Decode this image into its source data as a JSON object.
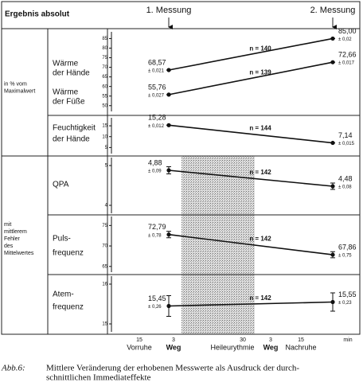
{
  "header": {
    "title": "Ergebnis absolut",
    "measurements": [
      "1. Messung",
      "2. Messung"
    ]
  },
  "groups": [
    {
      "label": [
        "in % vom",
        "Maximalwert"
      ]
    },
    {
      "label": [
        "mit",
        "mittlerem",
        "Fehler",
        "des",
        "Mittelwertes"
      ]
    }
  ],
  "chart_data": [
    {
      "type": "line",
      "ylim": [
        47,
        88.5
      ],
      "yticks": [
        50,
        55,
        60,
        65,
        70,
        75,
        80,
        85
      ],
      "series": [
        {
          "name_lines": [
            "Wärme",
            "der Hände"
          ],
          "values": [
            68.57,
            85.0
          ],
          "value_labels": [
            "68,57",
            "85,00"
          ],
          "errors": [
            0.021,
            0.02
          ],
          "error_labels": [
            "± 0,021",
            "± 0,02"
          ],
          "n_label": "n = 140"
        },
        {
          "name_lines": [
            "Wärme",
            "der Füße"
          ],
          "values": [
            55.76,
            72.66
          ],
          "value_labels": [
            "55,76",
            "72,66"
          ],
          "errors": [
            0.027,
            0.017
          ],
          "error_labels": [
            "± 0,027",
            "± 0,017"
          ],
          "n_label": "n = 139"
        }
      ]
    },
    {
      "type": "line",
      "ylim": [
        2.2,
        18.7
      ],
      "yticks": [
        5,
        10,
        15
      ],
      "series": [
        {
          "name_lines": [
            "Feuchtigkeit",
            "der Hände"
          ],
          "values": [
            15.28,
            7.14
          ],
          "value_labels": [
            "15,28",
            "7,14"
          ],
          "errors": [
            0.012,
            0.015
          ],
          "error_labels": [
            "± 0,012",
            "± 0,015"
          ],
          "n_label": "n = 144"
        }
      ]
    },
    {
      "type": "line",
      "ylim": [
        3.8,
        5.2
      ],
      "yticks": [
        4,
        5
      ],
      "series": [
        {
          "name_lines": [
            "QPA"
          ],
          "values": [
            4.88,
            4.48
          ],
          "value_labels": [
            "4,88",
            "4,48"
          ],
          "errors": [
            0.09,
            0.08
          ],
          "error_labels": [
            "± 0,09",
            "± 0,08"
          ],
          "n_label": "n = 142"
        }
      ]
    },
    {
      "type": "line",
      "ylim": [
        63.6,
        77.2
      ],
      "yticks": [
        65,
        70,
        75
      ],
      "series": [
        {
          "name_lines": [
            "Puls-",
            "frequenz"
          ],
          "values": [
            72.79,
            67.86
          ],
          "value_labels": [
            "72,79",
            "67,86"
          ],
          "errors": [
            0.78,
            0.75
          ],
          "error_labels": [
            "± 0,78",
            "± 0,75"
          ],
          "n_label": "n = 142"
        }
      ]
    },
    {
      "type": "line",
      "ylim": [
        14.8,
        16.2
      ],
      "yticks": [
        15,
        16
      ],
      "series": [
        {
          "name_lines": [
            "Atem-",
            "frequenz"
          ],
          "values": [
            15.45,
            15.55
          ],
          "value_labels": [
            "15,45",
            "15,55"
          ],
          "errors": [
            0.26,
            0.23
          ],
          "error_labels": [
            "± 0,26",
            "± 0,23"
          ],
          "n_label": "n = 142"
        }
      ]
    }
  ],
  "x_axis": {
    "ticks": [
      {
        "label": "15",
        "sub": "Vorruhe"
      },
      {
        "label": "3",
        "sub": "Weg"
      },
      {
        "label": "30",
        "sub": "Heileurythmie"
      },
      {
        "label": "3",
        "sub": "Weg"
      },
      {
        "label": "15",
        "sub": "Nachruhe"
      }
    ],
    "unit": "min"
  },
  "caption": {
    "label": "Abb.6:",
    "lines": [
      "Mittlere Veränderung der erhobenen Messwerte als Ausdruck der durch-",
      "schnittlichen Immediateffekte"
    ]
  }
}
